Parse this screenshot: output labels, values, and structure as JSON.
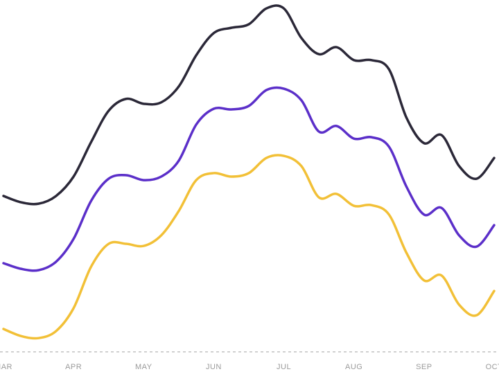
{
  "chart_data": {
    "type": "line",
    "categories": [
      "MAR",
      null,
      null,
      null,
      "APR",
      null,
      null,
      null,
      "MAY",
      null,
      null,
      null,
      "JUN",
      null,
      null,
      null,
      "JUL",
      null,
      null,
      null,
      "AUG",
      null,
      null,
      null,
      "SEP",
      null,
      null,
      null,
      "OCT"
    ],
    "series": [
      {
        "color": "#2b2838",
        "values": [
          44.3,
          42.5,
          42.1,
          44.3,
          49.8,
          59.6,
          68.5,
          71.9,
          70.5,
          70.9,
          75.4,
          84.3,
          90.6,
          92.1,
          93.1,
          97.6,
          97.6,
          89.2,
          84.6,
          86.6,
          82.9,
          82.9,
          80.3,
          66.5,
          59.3,
          61.6,
          52.8,
          49.2,
          55.1
        ]
      },
      {
        "color": "#5b2fc9",
        "values": [
          25.2,
          23.6,
          23.2,
          25.6,
          32.1,
          42.9,
          49.2,
          50.2,
          48.8,
          49.8,
          54.3,
          64.6,
          69.1,
          68.9,
          69.9,
          74.4,
          74.8,
          71.5,
          62.6,
          64.2,
          60.6,
          61.0,
          58.3,
          46.9,
          39.0,
          40.9,
          33.1,
          29.9,
          36.0
        ]
      },
      {
        "color": "#f2c037",
        "values": [
          6.5,
          4.5,
          3.9,
          5.9,
          12.4,
          24.2,
          30.7,
          30.7,
          30.1,
          33.1,
          40.0,
          48.8,
          50.8,
          49.8,
          50.8,
          55.1,
          55.7,
          52.8,
          43.9,
          44.9,
          41.5,
          41.7,
          39.0,
          28.1,
          20.3,
          21.7,
          13.4,
          10.4,
          17.3
        ]
      }
    ],
    "ylim": [
      0,
      100
    ]
  }
}
